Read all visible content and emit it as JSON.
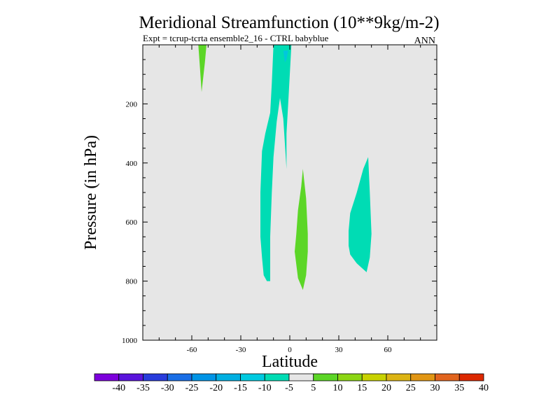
{
  "chart_data": {
    "type": "contour",
    "title": "Meridional Streamfunction (10**9kg/m-2)",
    "subtitle": "Expt = tcrup-tcrta  ensemble2_16 - CTRL babyblue",
    "season": "ANN",
    "xlabel": "Latitude",
    "ylabel": "Pressure (in hPa)",
    "xlim": [
      -90,
      90
    ],
    "ylim": [
      1000,
      0
    ],
    "x_ticks": [
      -60,
      -30,
      0,
      30,
      60
    ],
    "x_tick_labels": [
      "-60",
      "-30",
      "0",
      "30",
      "60"
    ],
    "y_ticks": [
      200,
      400,
      600,
      800,
      1000
    ],
    "y_tick_labels": [
      "200",
      "400",
      "600",
      "800",
      "1000"
    ],
    "background_color": "#e6e6e6",
    "regions": [
      {
        "name": "positive-5-10-upper-sh",
        "level": "5 to 10",
        "color": "#5cd627",
        "points": [
          [
            -56,
            0
          ],
          [
            -51,
            0
          ],
          [
            -52,
            60
          ],
          [
            -54,
            160
          ],
          [
            -55,
            80
          ]
        ]
      },
      {
        "name": "negative-10-5-tropical-column",
        "level": "-10 to -5",
        "color": "#00dcb4",
        "points": [
          [
            -10,
            0
          ],
          [
            1,
            0
          ],
          [
            0,
            100
          ],
          [
            -1,
            200
          ],
          [
            -2,
            300
          ],
          [
            -2,
            420
          ],
          [
            -4,
            250
          ],
          [
            -6,
            180
          ],
          [
            -8,
            260
          ],
          [
            -10,
            380
          ],
          [
            -11,
            500
          ],
          [
            -12,
            650
          ],
          [
            -12,
            800
          ],
          [
            -14,
            800
          ],
          [
            -16,
            780
          ],
          [
            -17,
            720
          ],
          [
            -18,
            650
          ],
          [
            -18,
            500
          ],
          [
            -17,
            360
          ],
          [
            -15,
            300
          ],
          [
            -12,
            230
          ],
          [
            -11,
            130
          ]
        ]
      },
      {
        "name": "negative-15-10-tropical-core",
        "level": "-15 to -10",
        "color": "#00c8dc",
        "points": [
          [
            -4,
            20
          ],
          [
            -1,
            20
          ],
          [
            -2,
            50
          ],
          [
            -3,
            60
          ]
        ]
      },
      {
        "name": "positive-5-10-tropical",
        "level": "5 to 10",
        "color": "#5cd627",
        "points": [
          [
            8,
            420
          ],
          [
            10,
            520
          ],
          [
            11,
            640
          ],
          [
            11,
            700
          ],
          [
            10,
            780
          ],
          [
            8,
            830
          ],
          [
            5,
            790
          ],
          [
            3,
            700
          ],
          [
            4,
            640
          ],
          [
            5,
            560
          ],
          [
            7,
            480
          ]
        ]
      },
      {
        "name": "negative-10-5-midlat-nh",
        "level": "-10 to -5",
        "color": "#00dcb4",
        "points": [
          [
            48,
            380
          ],
          [
            49,
            500
          ],
          [
            50,
            640
          ],
          [
            49,
            720
          ],
          [
            47,
            770
          ],
          [
            41,
            740
          ],
          [
            37,
            710
          ],
          [
            36,
            680
          ],
          [
            36,
            630
          ],
          [
            37,
            570
          ],
          [
            41,
            500
          ],
          [
            45,
            420
          ]
        ]
      }
    ],
    "colorbar": {
      "labels": [
        "-40",
        "-35",
        "-30",
        "-25",
        "-20",
        "-15",
        "-10",
        "-5",
        "5",
        "10",
        "15",
        "20",
        "25",
        "30",
        "35",
        "40"
      ],
      "colors": [
        "#7d00dc",
        "#5a14dc",
        "#283cdc",
        "#1a6ee6",
        "#0094e6",
        "#00afe1",
        "#00cae0",
        "#00dcb4",
        "#e6e6e6",
        "#5cd627",
        "#8cd614",
        "#c8d200",
        "#dcb414",
        "#e19614",
        "#e1641e",
        "#dc2800"
      ]
    }
  }
}
